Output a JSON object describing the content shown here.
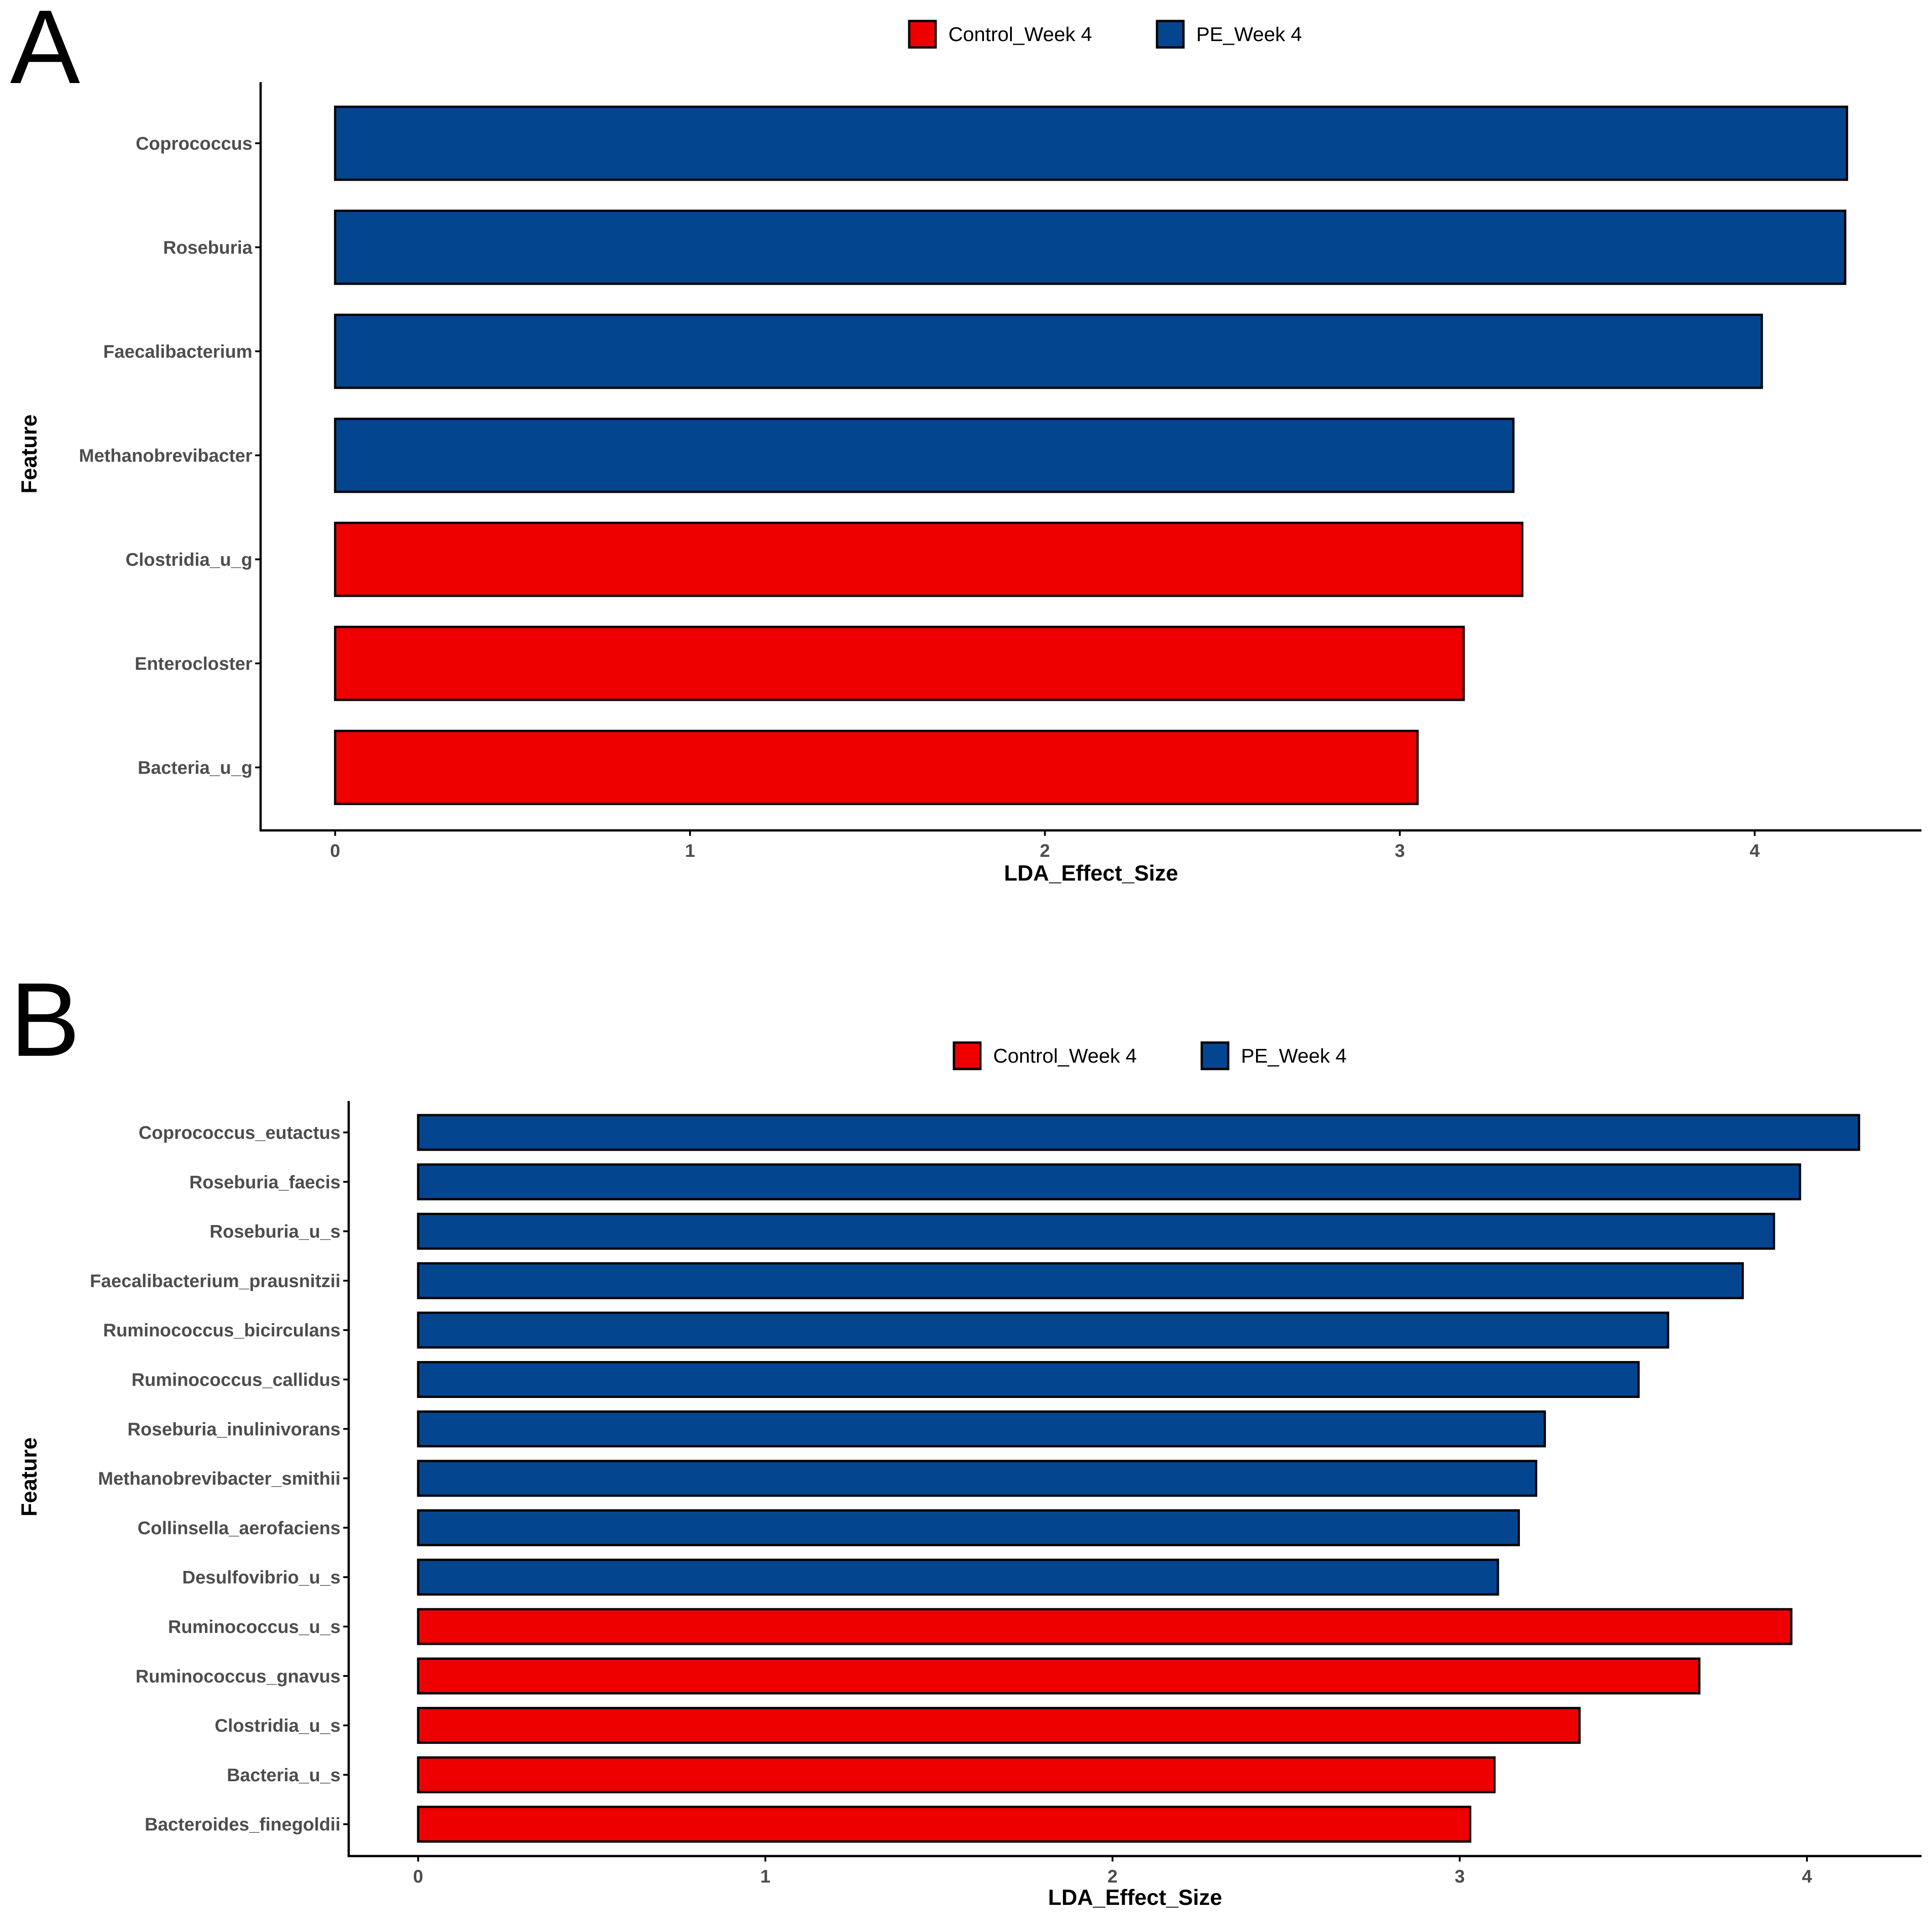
{
  "colors": {
    "control": "#EE0000",
    "pe": "#03468F",
    "axis": "#000000",
    "tick_text": "#4d4d4d"
  },
  "chart_data": [
    {
      "panel": "A",
      "type": "bar",
      "orientation": "horizontal",
      "xlabel": "LDA_Effect_Size",
      "ylabel": "Feature",
      "xlim": [
        -0.21,
        4.47
      ],
      "xticks": [
        "0",
        "1",
        "2",
        "3",
        "4"
      ],
      "legend": {
        "position": "top",
        "entries": [
          {
            "label": "Control_Week 4",
            "group": "control"
          },
          {
            "label": "PE_Week 4",
            "group": "pe"
          }
        ]
      },
      "bars": [
        {
          "feature": "Coprococcus",
          "value": 4.26,
          "group": "pe"
        },
        {
          "feature": "Roseburia",
          "value": 4.255,
          "group": "pe"
        },
        {
          "feature": "Faecalibacterium",
          "value": 4.02,
          "group": "pe"
        },
        {
          "feature": "Methanobrevibacter",
          "value": 3.32,
          "group": "pe"
        },
        {
          "feature": "Clostridia_u_g",
          "value": 3.345,
          "group": "control"
        },
        {
          "feature": "Enterocloster",
          "value": 3.18,
          "group": "control"
        },
        {
          "feature": "Bacteria_u_g",
          "value": 3.05,
          "group": "control"
        }
      ]
    },
    {
      "panel": "B",
      "type": "bar",
      "orientation": "horizontal",
      "xlabel": "LDA_Effect_Size",
      "ylabel": "Feature",
      "xlim": [
        -0.2,
        4.33
      ],
      "xticks": [
        "0",
        "1",
        "2",
        "3",
        "4"
      ],
      "legend": {
        "position": "top",
        "entries": [
          {
            "label": "Control_Week 4",
            "group": "control"
          },
          {
            "label": "PE_Week 4",
            "group": "pe"
          }
        ]
      },
      "bars": [
        {
          "feature": "Coprococcus_eutactus",
          "value": 4.15,
          "group": "pe"
        },
        {
          "feature": "Roseburia_faecis",
          "value": 3.98,
          "group": "pe"
        },
        {
          "feature": "Roseburia_u_s",
          "value": 3.905,
          "group": "pe"
        },
        {
          "feature": "Faecalibacterium_prausnitzii",
          "value": 3.815,
          "group": "pe"
        },
        {
          "feature": "Ruminococcus_bicirculans",
          "value": 3.6,
          "group": "pe"
        },
        {
          "feature": "Ruminococcus_callidus",
          "value": 3.515,
          "group": "pe"
        },
        {
          "feature": "Roseburia_inulinivorans",
          "value": 3.245,
          "group": "pe"
        },
        {
          "feature": "Methanobrevibacter_smithii",
          "value": 3.22,
          "group": "pe"
        },
        {
          "feature": "Collinsella_aerofaciens",
          "value": 3.17,
          "group": "pe"
        },
        {
          "feature": "Desulfovibrio_u_s",
          "value": 3.11,
          "group": "pe"
        },
        {
          "feature": "Ruminococcus_u_s",
          "value": 3.955,
          "group": "control"
        },
        {
          "feature": "Ruminococcus_gnavus",
          "value": 3.69,
          "group": "control"
        },
        {
          "feature": "Clostridia_u_s",
          "value": 3.345,
          "group": "control"
        },
        {
          "feature": "Bacteria_u_s",
          "value": 3.1,
          "group": "control"
        },
        {
          "feature": "Bacteroides_finegoldii",
          "value": 3.03,
          "group": "control"
        }
      ]
    }
  ]
}
